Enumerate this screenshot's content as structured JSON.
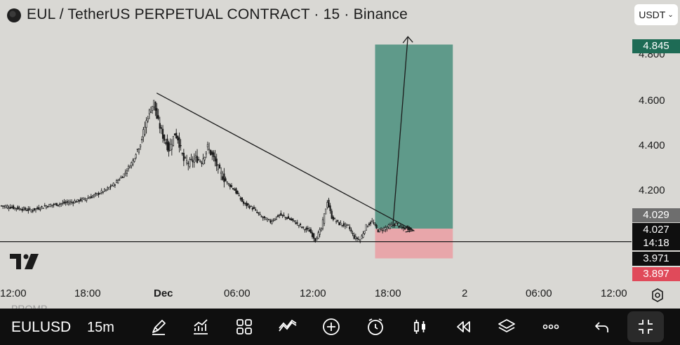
{
  "header": {
    "title": "EUL / TetherUS PERPETUAL CONTRACT · 15 · Binance",
    "currency_button": "USDT"
  },
  "price_axis": {
    "ticks": [
      "4.800",
      "4.600",
      "4.400",
      "4.200"
    ],
    "labels": {
      "target": {
        "text": "4.845",
        "bg": "#1e6b55",
        "color": "#ffffff"
      },
      "entry": {
        "text": "4.029",
        "bg": "#6e6e6e",
        "color": "#ffffff"
      },
      "last": {
        "text": "4.027",
        "bg": "#0f0f0f",
        "color": "#ffffff"
      },
      "countdown": {
        "text": "14:18",
        "bg": "#0f0f0f",
        "color": "#ffffff"
      },
      "support": {
        "text": "3.971",
        "bg": "#0f0f0f",
        "color": "#ffffff"
      },
      "stop": {
        "text": "3.897",
        "bg": "#e04a5a",
        "color": "#ffffff"
      }
    }
  },
  "time_axis": {
    "labels": [
      "12:00",
      "18:00",
      "Dec",
      "06:00",
      "12:00",
      "18:00",
      "2",
      "06:00",
      "12:00"
    ]
  },
  "ghost_text": "PROMP",
  "toolbar": {
    "symbol": "EULUSD",
    "interval": "15m",
    "icons": [
      "draw-icon",
      "indicators-icon",
      "layouts-icon",
      "compare-icon",
      "add-icon",
      "replay-icon",
      "candle-type-icon",
      "rewind-icon",
      "layers-icon",
      "more-icon",
      "undo-icon",
      "fullscreen-icon"
    ]
  },
  "colors": {
    "background": "#d9d8d4",
    "profit_zone": "#5f9a8a",
    "loss_zone": "#e8a6aa",
    "candle": "#1b1b1b"
  },
  "chart_data": {
    "type": "candlestick",
    "title": "EUL / TetherUS PERPETUAL CONTRACT · 15 · Binance",
    "ylim": [
      3.86,
      4.93
    ],
    "x_ticks": [
      "12:00",
      "18:00",
      "Dec",
      "06:00",
      "12:00",
      "18:00",
      "2",
      "06:00",
      "12:00"
    ],
    "y_ticks": [
      4.8,
      4.6,
      4.4,
      4.2
    ],
    "anchors": [
      [
        0,
        4.13
      ],
      [
        10,
        4.12
      ],
      [
        20,
        4.11
      ],
      [
        30,
        4.13
      ],
      [
        40,
        4.14
      ],
      [
        50,
        4.15
      ],
      [
        60,
        4.17
      ],
      [
        70,
        4.2
      ],
      [
        76,
        4.23
      ],
      [
        82,
        4.27
      ],
      [
        88,
        4.33
      ],
      [
        94,
        4.43
      ],
      [
        98,
        4.53
      ],
      [
        102,
        4.59
      ],
      [
        104,
        4.52
      ],
      [
        108,
        4.44
      ],
      [
        112,
        4.38
      ],
      [
        116,
        4.45
      ],
      [
        118,
        4.43
      ],
      [
        122,
        4.33
      ],
      [
        126,
        4.32
      ],
      [
        130,
        4.34
      ],
      [
        134,
        4.33
      ],
      [
        138,
        4.39
      ],
      [
        142,
        4.34
      ],
      [
        146,
        4.28
      ],
      [
        150,
        4.24
      ],
      [
        156,
        4.2
      ],
      [
        162,
        4.14
      ],
      [
        168,
        4.12
      ],
      [
        174,
        4.08
      ],
      [
        180,
        4.06
      ],
      [
        186,
        4.09
      ],
      [
        190,
        4.08
      ],
      [
        196,
        4.06
      ],
      [
        202,
        4.03
      ],
      [
        206,
        4.02
      ],
      [
        210,
        3.98
      ],
      [
        214,
        4.03
      ],
      [
        216,
        4.09
      ],
      [
        218,
        4.15
      ],
      [
        221,
        4.08
      ],
      [
        226,
        4.05
      ],
      [
        232,
        4.04
      ],
      [
        236,
        3.99
      ],
      [
        240,
        3.98
      ],
      [
        244,
        4.04
      ],
      [
        248,
        4.06
      ],
      [
        252,
        4.02
      ],
      [
        256,
        4.03
      ],
      [
        260,
        4.04
      ],
      [
        264,
        4.05
      ],
      [
        268,
        4.03
      ],
      [
        274,
        4.03
      ]
    ],
    "trendline": {
      "start": [
        102,
        4.63
      ],
      "end": [
        274,
        4.02
      ]
    },
    "horizontal_line": 3.971,
    "position": {
      "entry": 4.029,
      "target": 4.845,
      "stop": 3.897,
      "start_index": 250,
      "end_index": 302
    },
    "projection_arrow": {
      "from": [
        262,
        4.05
      ],
      "to": [
        271,
        4.88
      ]
    }
  }
}
